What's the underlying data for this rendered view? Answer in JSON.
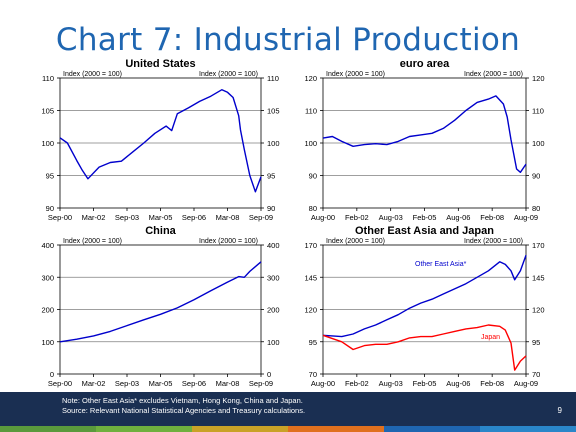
{
  "slide": {
    "title": "Chart 7: Industrial Production",
    "note_line1": "Note: Other East Asia* excludes Vietnam, Hong Kong, China and Japan.",
    "note_line2": "Source: Relevant National Statistical Agencies and Treasury calculations.",
    "page_number": "9",
    "colors": {
      "title": "#1f66b1",
      "footer_bg": "#1a2f52",
      "series_blue": "#0000cc",
      "series_red": "#ff0000"
    },
    "stripe_colors": [
      "#5a9a3c",
      "#6fb03e",
      "#c9a227",
      "#e0701e",
      "#1f66b1",
      "#2a86c9"
    ]
  },
  "chart_data": [
    {
      "type": "line",
      "title": "United States",
      "left_axis_note": "Index (2000 = 100)",
      "right_axis_note": "Index (2000 = 100)",
      "ylim": [
        90,
        110
      ],
      "yticks": [
        "90",
        "95",
        "100",
        "105",
        "110"
      ],
      "xticks": [
        "Sep-00",
        "Mar-02",
        "Sep-03",
        "Mar-05",
        "Sep-06",
        "Mar-08",
        "Sep-09"
      ],
      "xlim": [
        "2000-09",
        "2009-09"
      ],
      "series": [
        {
          "color": "#0000cc",
          "x": [
            "2000-09",
            "2001-01",
            "2001-06",
            "2001-09",
            "2001-12",
            "2002-06",
            "2002-12",
            "2003-06",
            "2003-12",
            "2004-06",
            "2004-12",
            "2005-06",
            "2005-09",
            "2005-12",
            "2006-06",
            "2006-12",
            "2007-06",
            "2007-12",
            "2008-03",
            "2008-06",
            "2008-09",
            "2008-10",
            "2008-12",
            "2009-03",
            "2009-06",
            "2009-09"
          ],
          "values": [
            100.8,
            100.0,
            97.3,
            95.8,
            94.5,
            96.3,
            97.0,
            97.2,
            98.6,
            100.0,
            101.5,
            102.6,
            101.9,
            104.5,
            105.4,
            106.4,
            107.2,
            108.2,
            107.8,
            107.0,
            104.2,
            102.0,
            99.0,
            95.0,
            92.5,
            94.8
          ]
        }
      ]
    },
    {
      "type": "line",
      "title": "euro area",
      "left_axis_note": "Index (2000 = 100)",
      "right_axis_note": "Index (2000 = 100)",
      "ylim": [
        80,
        120
      ],
      "yticks": [
        "80",
        "90",
        "100",
        "110",
        "120"
      ],
      "xticks": [
        "Aug-00",
        "Feb-02",
        "Aug-03",
        "Feb-05",
        "Aug-06",
        "Feb-08",
        "Aug-09"
      ],
      "xlim": [
        "2000-08",
        "2009-08"
      ],
      "series": [
        {
          "color": "#0000cc",
          "x": [
            "2000-08",
            "2001-01",
            "2001-06",
            "2001-12",
            "2002-06",
            "2002-12",
            "2003-06",
            "2003-12",
            "2004-06",
            "2004-12",
            "2005-06",
            "2005-12",
            "2006-06",
            "2006-12",
            "2007-06",
            "2007-12",
            "2008-04",
            "2008-08",
            "2008-10",
            "2008-12",
            "2009-03",
            "2009-05",
            "2009-08"
          ],
          "values": [
            101.5,
            102.0,
            100.5,
            99.0,
            99.5,
            99.8,
            99.5,
            100.5,
            102.0,
            102.5,
            103.0,
            104.5,
            107.0,
            110.0,
            112.5,
            113.5,
            114.5,
            112.0,
            108.0,
            101.0,
            92.0,
            91.0,
            93.5
          ]
        }
      ]
    },
    {
      "type": "line",
      "title": "China",
      "left_axis_note": "Index (2000 = 100)",
      "right_axis_note": "Index (2000 = 100)",
      "ylim": [
        0,
        400
      ],
      "yticks": [
        "0",
        "100",
        "200",
        "300",
        "400"
      ],
      "xticks": [
        "Sep-00",
        "Mar-02",
        "Sep-03",
        "Mar-05",
        "Sep-06",
        "Mar-08",
        "Sep-09"
      ],
      "xlim": [
        "2000-09",
        "2009-09"
      ],
      "series": [
        {
          "color": "#0000cc",
          "x": [
            "2000-09",
            "2001-06",
            "2002-03",
            "2002-12",
            "2003-09",
            "2004-06",
            "2005-03",
            "2005-12",
            "2006-09",
            "2007-06",
            "2008-03",
            "2008-09",
            "2008-12",
            "2009-03",
            "2009-09"
          ],
          "values": [
            100,
            108,
            118,
            132,
            150,
            168,
            185,
            205,
            230,
            258,
            285,
            302,
            300,
            318,
            348
          ]
        }
      ]
    },
    {
      "type": "line",
      "title": "Other East Asia and Japan",
      "left_axis_note": "Index (2000 = 100)",
      "right_axis_note": "Index (2000 = 100)",
      "ylim": [
        70,
        170
      ],
      "yticks": [
        "70",
        "95",
        "120",
        "145",
        "170"
      ],
      "xticks": [
        "Aug-00",
        "Feb-02",
        "Aug-03",
        "Feb-05",
        "Aug-06",
        "Feb-08",
        "Aug-09"
      ],
      "xlim": [
        "2000-08",
        "2009-08"
      ],
      "series": [
        {
          "name": "Other East Asia*",
          "color": "#0000cc",
          "x": [
            "2000-08",
            "2001-06",
            "2001-12",
            "2002-06",
            "2002-12",
            "2003-06",
            "2003-12",
            "2004-06",
            "2004-12",
            "2005-06",
            "2005-12",
            "2006-06",
            "2006-12",
            "2007-06",
            "2007-12",
            "2008-06",
            "2008-09",
            "2008-12",
            "2009-02",
            "2009-05",
            "2009-08"
          ],
          "values": [
            100,
            99,
            101,
            105,
            108,
            112,
            116,
            121,
            125,
            128,
            132,
            136,
            140,
            145,
            150,
            157,
            155,
            150,
            143,
            150,
            162
          ]
        },
        {
          "name": "Japan",
          "color": "#ff0000",
          "x": [
            "2000-08",
            "2001-06",
            "2001-12",
            "2002-06",
            "2002-12",
            "2003-06",
            "2003-12",
            "2004-06",
            "2004-12",
            "2005-06",
            "2005-12",
            "2006-06",
            "2006-12",
            "2007-06",
            "2007-12",
            "2008-06",
            "2008-09",
            "2008-12",
            "2009-02",
            "2009-05",
            "2009-08"
          ],
          "values": [
            100,
            95,
            89,
            92,
            93,
            93,
            95,
            98,
            99,
            99,
            101,
            103,
            105,
            106,
            108,
            107,
            104,
            94,
            73,
            80,
            84
          ]
        }
      ]
    }
  ]
}
